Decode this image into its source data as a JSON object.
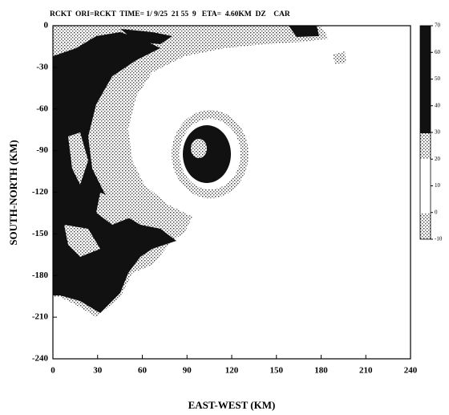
{
  "chart_data": {
    "type": "radar-image",
    "title": "RCKT  ORI=RCKT  TIME= 1/ 9/25  21 55  9   ETA=  4.60KM  DZ    CAR",
    "xlabel": "EAST-WEST (KM)",
    "ylabel": "SOUTH-NORTH (KM)",
    "xlim": [
      0,
      240
    ],
    "ylim": [
      -240,
      0
    ],
    "xticks": [
      0,
      30,
      60,
      90,
      120,
      150,
      180,
      210,
      240
    ],
    "yticks": [
      0,
      -30,
      -60,
      -90,
      -120,
      -150,
      -180,
      -210,
      -240
    ],
    "colorbar": {
      "lim": [
        -10,
        70
      ],
      "ticks": [
        70,
        60,
        50,
        40,
        30,
        20,
        10,
        0,
        -10
      ]
    }
  }
}
